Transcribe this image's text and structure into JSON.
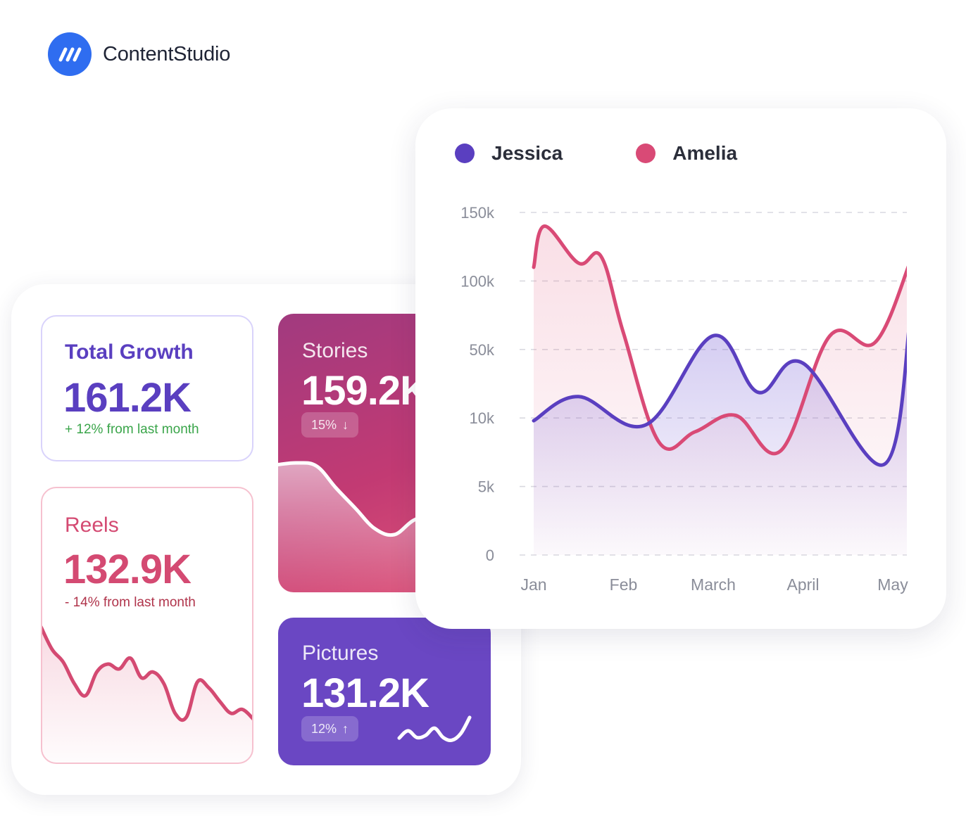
{
  "brand": {
    "name": "ContentStudio",
    "color": "#2f6df0"
  },
  "cards": {
    "total_growth": {
      "label": "Total Growth",
      "value": "161.2K",
      "note": "+ 12% from last month",
      "color": "#5a3fc0",
      "note_color": "#3aa54a"
    },
    "reels": {
      "label": "Reels",
      "value": "132.9K",
      "note": "- 14% from last month",
      "color": "#d44a72",
      "note_color": "#b0344b",
      "trend": [
        0.98,
        0.75,
        0.62,
        0.4,
        0.28,
        0.52,
        0.6,
        0.55,
        0.66,
        0.46,
        0.52,
        0.4,
        0.1,
        0.06,
        0.42,
        0.36,
        0.22,
        0.1,
        0.14,
        0.04
      ]
    },
    "stories": {
      "label": "Stories",
      "value": "159.2K",
      "pill": "15%",
      "pill_arrow": "↓",
      "trend": [
        0.88,
        0.9,
        0.86,
        0.6,
        0.36,
        0.12,
        0.05,
        0.22,
        0.28,
        0.16,
        0.08,
        0.2,
        0.32
      ]
    },
    "pictures": {
      "label": "Pictures",
      "value": "131.2K",
      "pill": "12%",
      "pill_arrow": "↑",
      "trend": [
        0.18,
        0.45,
        0.2,
        0.28,
        0.55,
        0.2,
        0.1,
        0.35,
        0.95
      ]
    }
  },
  "chart_data": {
    "type": "area",
    "title": "",
    "xlabel": "",
    "ylabel": "",
    "categories": [
      "Jan",
      "Feb",
      "March",
      "April",
      "May"
    ],
    "y_tick_labels": [
      "0",
      "5k",
      "10k",
      "50k",
      "100k",
      "150k"
    ],
    "y_scale": "ordinal-ticks",
    "grid": true,
    "legend": "top-left",
    "series": [
      {
        "name": "Jessica",
        "color": "#5a3fc0",
        "x": [
          0,
          0.5,
          1.25,
          2.0,
          2.5,
          3.0,
          3.9,
          4.2
        ],
        "values": [
          9.8,
          22.5,
          9.5,
          60,
          25,
          42,
          6.6,
          76
        ]
      },
      {
        "name": "Amelia",
        "color": "#d94a76",
        "x": [
          0,
          0.12,
          0.5,
          0.75,
          1.0,
          1.4,
          1.8,
          2.25,
          2.75,
          3.3,
          3.8,
          4.2
        ],
        "values": [
          110,
          140,
          113,
          118,
          62,
          8.2,
          9.0,
          11.5,
          7.6,
          60,
          55,
          115
        ]
      }
    ]
  }
}
